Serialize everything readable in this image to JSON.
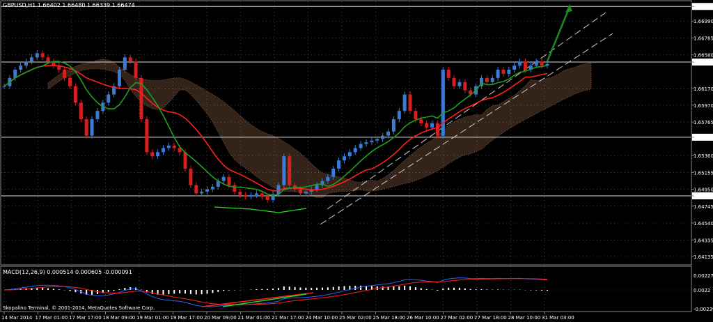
{
  "header": {
    "symbol_line": "GBPUSD,H1  1.66402 1.66480 1.66339 1.66474"
  },
  "macd": {
    "label": "MACD(12,26,9) 0.000514 0.000605 -0.000091"
  },
  "footer": {
    "copyright": "Skopalino Terminal, © 2001-2014, MetaQuotes Software Corp."
  },
  "colors": {
    "background": "#000000",
    "bull_candle": "#3a7bd5",
    "bear_candle": "#d62020",
    "ma_red": "#ff2020",
    "ma_green": "#1fa01f",
    "cloud": "#e8a070",
    "macd_line": "#3060ff",
    "signal_line": "#ff2020",
    "grid": "#888888"
  },
  "chart_data": {
    "type": "line",
    "title": "GBPUSD,H1",
    "price_axis_ticks": [
      "1.67167",
      "1.66990",
      "1.66785",
      "1.66580",
      "1.66493",
      "1.66170",
      "1.65970",
      "1.65765",
      "1.65581",
      "1.65360",
      "1.65155",
      "1.64950",
      "1.64870",
      "1.64745",
      "1.64540",
      "1.64335",
      "1.64135"
    ],
    "highlighted_levels": [
      "1.67167",
      "1.66493",
      "1.65581",
      "1.64870"
    ],
    "macd_axis_ticks": [
      "0.00227",
      "0.0022",
      "-0.00239"
    ],
    "time_axis_ticks": [
      "14 Mar 2014",
      "17 Mar 01:00",
      "17 Mar 17:00",
      "18 Mar 09:00",
      "19 Mar 01:00",
      "19 Mar 17:00",
      "20 Mar 09:00",
      "21 Mar 01:00",
      "21 Mar 17:00",
      "24 Mar 10:00",
      "25 Mar 02:00",
      "25 Mar 18:00",
      "26 Mar 10:00",
      "27 Mar 02:00",
      "27 Mar 18:00",
      "28 Mar 10:00",
      "31 Mar 03:00"
    ],
    "ylim": [
      1.6405,
      1.6722
    ],
    "close_series": [
      1.662,
      1.663,
      1.664,
      1.6645,
      1.665,
      1.6655,
      1.666,
      1.6655,
      1.665,
      1.6645,
      1.664,
      1.663,
      1.662,
      1.66,
      1.658,
      1.656,
      1.658,
      1.659,
      1.66,
      1.661,
      1.662,
      1.664,
      1.6655,
      1.665,
      1.663,
      1.658,
      1.654,
      1.6535,
      1.654,
      1.6545,
      1.6548,
      1.6545,
      1.654,
      1.652,
      1.65,
      1.649,
      1.6492,
      1.6495,
      1.6498,
      1.6505,
      1.651,
      1.65,
      1.6492,
      1.6488,
      1.6486,
      1.6488,
      1.649,
      1.6486,
      1.6482,
      1.6489,
      1.65,
      1.6535,
      1.65,
      1.6495,
      1.649,
      1.6492,
      1.6495,
      1.65,
      1.6505,
      1.651,
      1.652,
      1.653,
      1.6535,
      1.654,
      1.6545,
      1.655,
      1.6552,
      1.6554,
      1.6556,
      1.656,
      1.6565,
      1.658,
      1.659,
      1.661,
      1.659,
      1.658,
      1.6575,
      1.657,
      1.6575,
      1.656,
      1.664,
      1.663,
      1.662,
      1.6625,
      1.6615,
      1.661,
      1.662,
      1.663,
      1.6625,
      1.663,
      1.664,
      1.6635,
      1.664,
      1.6645,
      1.665,
      1.664,
      1.6645,
      1.665,
      1.6645,
      1.6647
    ],
    "series": [],
    "grid": true,
    "legend": "none"
  }
}
